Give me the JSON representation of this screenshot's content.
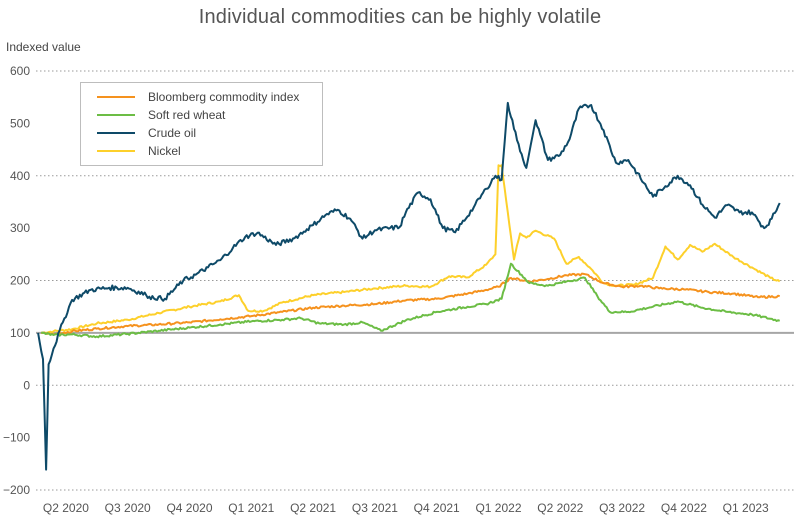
{
  "chart_data": {
    "type": "line",
    "title": "Individual commodities can be highly volatile",
    "ylabel": "Indexed value",
    "xlabel": "",
    "ylim": [
      -200,
      600
    ],
    "yticks": [
      "600",
      "500",
      "400",
      "300",
      "200",
      "100",
      "0",
      "−100",
      "−200"
    ],
    "ytick_values": [
      600,
      500,
      400,
      300,
      200,
      100,
      0,
      -100,
      -200
    ],
    "gridlines": [
      600,
      400,
      200,
      0,
      -200
    ],
    "baseline": 100,
    "xlim_quarters": [
      0,
      12
    ],
    "xticks": [
      "Q2 2020",
      "Q3 2020",
      "Q4 2020",
      "Q1 2021",
      "Q2 2021",
      "Q3 2021",
      "Q4 2021",
      "Q1 2022",
      "Q2 2022",
      "Q3 2022",
      "Q4 2022",
      "Q1 2023"
    ],
    "x_unit": "quarters since start of Q2 2020",
    "legend_position": "top-left",
    "series": [
      {
        "name": "Bloomberg commodity index",
        "color": "#f5921e",
        "x": [
          0.1,
          0.3,
          0.6,
          1.0,
          1.5,
          2.0,
          2.5,
          3.0,
          3.5,
          4.0,
          4.5,
          5.0,
          5.5,
          6.0,
          6.5,
          7.0,
          7.3,
          7.5,
          7.7,
          8.0,
          8.3,
          8.6,
          8.9,
          9.2,
          9.5,
          9.8,
          10.1,
          10.5,
          10.9,
          11.3,
          11.7,
          12.05
        ],
        "values": [
          100,
          97,
          103,
          108,
          113,
          116,
          120,
          126,
          132,
          140,
          148,
          152,
          155,
          162,
          165,
          175,
          182,
          188,
          205,
          198,
          203,
          210,
          212,
          195,
          188,
          190,
          185,
          183,
          178,
          175,
          168,
          170
        ]
      },
      {
        "name": "Soft red wheat",
        "color": "#6cbd45",
        "x": [
          0.1,
          0.3,
          0.6,
          1.0,
          1.5,
          2.0,
          2.5,
          3.0,
          3.5,
          4.0,
          4.3,
          4.6,
          5.0,
          5.3,
          5.6,
          6.0,
          6.5,
          7.0,
          7.3,
          7.55,
          7.7,
          8.0,
          8.3,
          8.6,
          8.9,
          9.1,
          9.3,
          9.6,
          10.0,
          10.4,
          10.8,
          11.2,
          11.6,
          12.05
        ],
        "values": [
          100,
          96,
          97,
          93,
          98,
          104,
          110,
          116,
          122,
          125,
          128,
          118,
          116,
          120,
          104,
          124,
          140,
          150,
          155,
          165,
          232,
          195,
          190,
          198,
          205,
          170,
          140,
          140,
          150,
          160,
          148,
          140,
          135,
          123
        ]
      },
      {
        "name": "Crude oil",
        "color": "#0e4a68",
        "x": [
          0.05,
          0.13,
          0.18,
          0.22,
          0.3,
          0.45,
          0.6,
          0.9,
          1.2,
          1.5,
          1.8,
          1.85,
          2.1,
          2.4,
          2.6,
          2.8,
          3.0,
          3.2,
          3.4,
          3.6,
          3.9,
          4.2,
          4.4,
          4.5,
          4.7,
          4.9,
          5.1,
          5.3,
          5.5,
          5.9,
          6.0,
          6.2,
          6.4,
          6.6,
          6.8,
          7.1,
          7.3,
          7.45,
          7.55,
          7.65,
          7.8,
          7.95,
          8.1,
          8.3,
          8.5,
          8.65,
          8.8,
          9.0,
          9.2,
          9.4,
          9.6,
          9.8,
          10.0,
          10.2,
          10.4,
          10.6,
          10.8,
          11.0,
          11.2,
          11.4,
          11.6,
          11.8,
          11.92,
          12.05
        ],
        "values": [
          100,
          50,
          -161,
          40,
          70,
          120,
          163,
          182,
          186,
          186,
          172,
          169,
          165,
          200,
          211,
          225,
          239,
          262,
          283,
          291,
          268,
          281,
          298,
          306,
          325,
          335,
          318,
          280,
          296,
          302,
          330,
          368,
          355,
          300,
          292,
          340,
          375,
          400,
          392,
          539,
          468,
          415,
          506,
          430,
          440,
          470,
          528,
          535,
          487,
          425,
          430,
          395,
          360,
          380,
          400,
          382,
          345,
          320,
          344,
          330,
          330,
          300,
          318,
          348
        ]
      },
      {
        "name": "Nickel",
        "color": "#fdd02b",
        "x": [
          0.1,
          0.3,
          0.6,
          1.0,
          1.5,
          2.0,
          2.5,
          3.0,
          3.3,
          3.45,
          3.7,
          4.0,
          4.5,
          5.0,
          5.5,
          6.0,
          6.4,
          6.7,
          7.0,
          7.3,
          7.45,
          7.5,
          7.55,
          7.75,
          7.85,
          7.95,
          8.1,
          8.4,
          8.6,
          8.8,
          9.0,
          9.2,
          9.4,
          9.7,
          10.0,
          10.2,
          10.4,
          10.6,
          10.8,
          11.0,
          11.3,
          11.6,
          11.9,
          12.05
        ],
        "values": [
          100,
          103,
          107,
          118,
          125,
          138,
          150,
          160,
          172,
          142,
          142,
          158,
          172,
          178,
          185,
          190,
          188,
          208,
          206,
          230,
          250,
          420,
          420,
          240,
          290,
          282,
          295,
          280,
          232,
          245,
          222,
          195,
          190,
          192,
          205,
          265,
          240,
          268,
          255,
          270,
          245,
          225,
          205,
          198
        ]
      }
    ]
  },
  "legend": {
    "items": [
      {
        "label": "Bloomberg commodity index",
        "color": "#f5921e"
      },
      {
        "label": "Soft red wheat",
        "color": "#6cbd45"
      },
      {
        "label": "Crude oil",
        "color": "#0e4a68"
      },
      {
        "label": "Nickel",
        "color": "#fdd02b"
      }
    ]
  }
}
